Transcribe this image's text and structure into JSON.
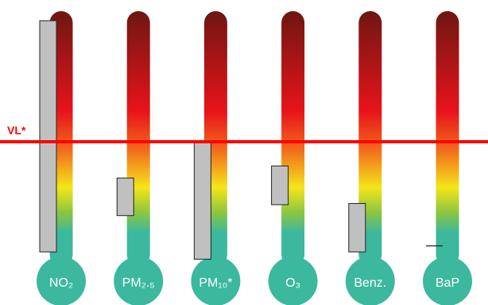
{
  "chart_data": {
    "type": "range",
    "categories": [
      "NO₂",
      "PM₂.₅",
      "PM₁₀*",
      "O₃",
      "Benz.",
      "BaP"
    ],
    "low": [
      9,
      39,
      3,
      48,
      9,
      14
    ],
    "high": [
      200,
      70,
      99,
      80,
      49,
      14
    ],
    "ylim": [
      0,
      200
    ],
    "limit": {
      "label": "VL*",
      "value": 100
    },
    "box_color": "#c0c0c0",
    "limit_color": "#ff0000",
    "bulb_color": "#3bb89e"
  }
}
